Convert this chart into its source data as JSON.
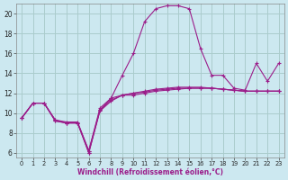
{
  "xlabel": "Windchill (Refroidissement éolien,°C)",
  "background_color": "#cce8f0",
  "grid_color": "#aacccc",
  "line_color": "#9b1d8a",
  "xlim": [
    -0.5,
    23.5
  ],
  "ylim": [
    5.5,
    21.0
  ],
  "yticks": [
    6,
    8,
    10,
    12,
    14,
    16,
    18,
    20
  ],
  "xticks": [
    0,
    1,
    2,
    3,
    4,
    5,
    6,
    7,
    8,
    9,
    10,
    11,
    12,
    13,
    14,
    15,
    16,
    17,
    18,
    19,
    20,
    21,
    22,
    23
  ],
  "series_main_x": [
    0,
    1,
    2,
    3,
    4,
    5,
    6,
    7,
    8,
    9,
    10,
    11,
    12,
    13,
    14,
    15,
    16,
    17,
    18,
    19,
    20,
    21,
    22,
    23
  ],
  "series_main_y": [
    9.5,
    11.0,
    11.0,
    9.2,
    9.0,
    9.0,
    6.0,
    10.3,
    11.5,
    13.8,
    16.0,
    19.2,
    20.5,
    20.8,
    20.8,
    20.5,
    16.5,
    13.8,
    13.8,
    12.5,
    12.3,
    15.0,
    13.2,
    15.0
  ],
  "series2_x": [
    0,
    1,
    2,
    3,
    4,
    5,
    6,
    7,
    8,
    9,
    10,
    11,
    12,
    13,
    14,
    15,
    16,
    17,
    18,
    19,
    20,
    21,
    22,
    23
  ],
  "series2_y": [
    9.5,
    11.0,
    11.0,
    9.3,
    9.0,
    9.0,
    6.2,
    10.3,
    11.3,
    11.8,
    12.0,
    12.2,
    12.4,
    12.5,
    12.6,
    12.6,
    12.6,
    12.5,
    12.4,
    12.3,
    12.2,
    12.2,
    12.2,
    12.2
  ],
  "series3_x": [
    0,
    1,
    2,
    3,
    4,
    5,
    6,
    7,
    8,
    9,
    10,
    11,
    12,
    13,
    14,
    15,
    16,
    17,
    18,
    19,
    20,
    21,
    22,
    23
  ],
  "series3_y": [
    9.5,
    11.0,
    11.0,
    9.3,
    9.1,
    9.1,
    6.2,
    10.5,
    11.5,
    11.8,
    12.0,
    12.1,
    12.3,
    12.4,
    12.5,
    12.5,
    12.5,
    12.5,
    12.4,
    12.3,
    12.2,
    12.2,
    12.2,
    12.2
  ],
  "series4_x": [
    0,
    1,
    2,
    3,
    4,
    5,
    6,
    7,
    8,
    9,
    10,
    11,
    12,
    13,
    14,
    15,
    16,
    17,
    18,
    19,
    20,
    21,
    22,
    23
  ],
  "series4_y": [
    9.5,
    11.0,
    11.0,
    9.2,
    9.0,
    9.0,
    6.0,
    10.2,
    11.2,
    11.8,
    11.8,
    12.0,
    12.2,
    12.3,
    12.4,
    12.5,
    12.5,
    12.5,
    12.4,
    12.3,
    12.2,
    12.2,
    12.2,
    12.2
  ]
}
